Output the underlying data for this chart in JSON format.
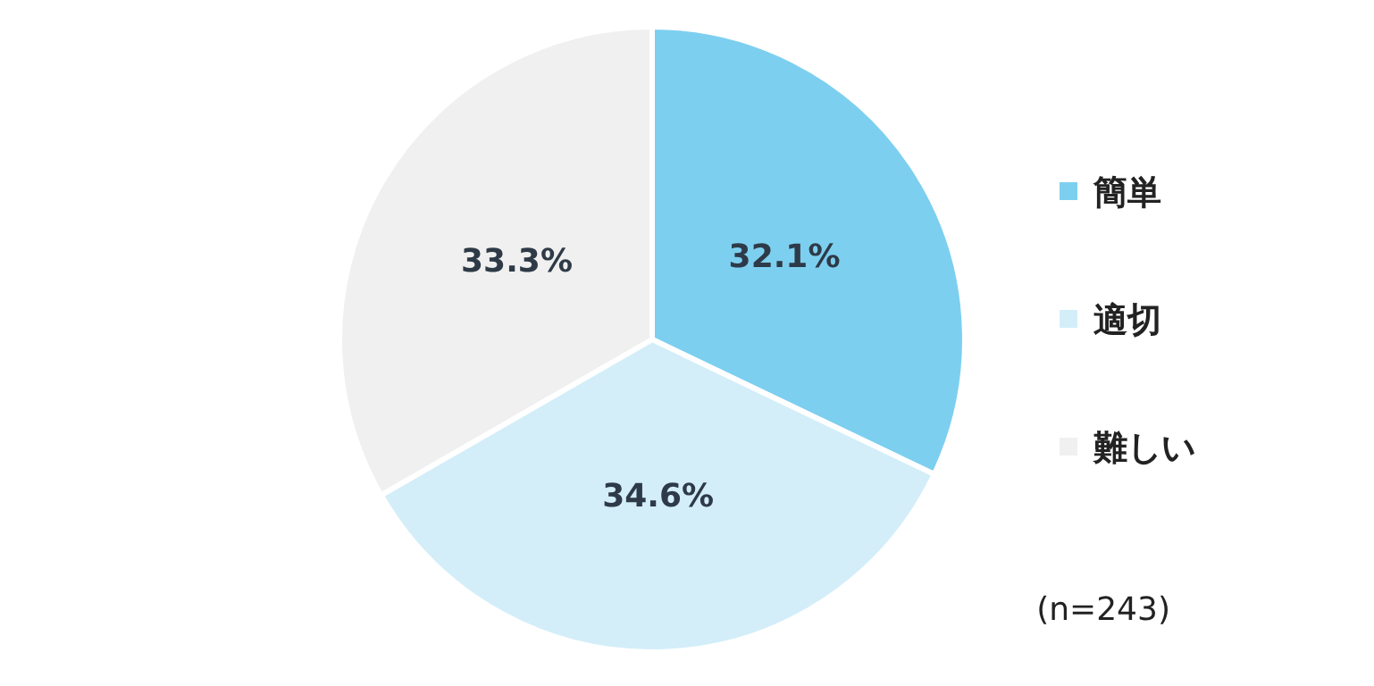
{
  "chart_data": {
    "type": "pie",
    "categories": [
      "簡単",
      "適切",
      "難しい"
    ],
    "values": [
      32.1,
      34.6,
      33.3
    ],
    "colors": [
      "#7dcff0",
      "#d3eef9",
      "#f0f0f0"
    ],
    "value_labels": [
      "32.1%",
      "34.6%",
      "33.3%"
    ],
    "legend": "right",
    "annotations": [
      "(n=243)"
    ]
  }
}
